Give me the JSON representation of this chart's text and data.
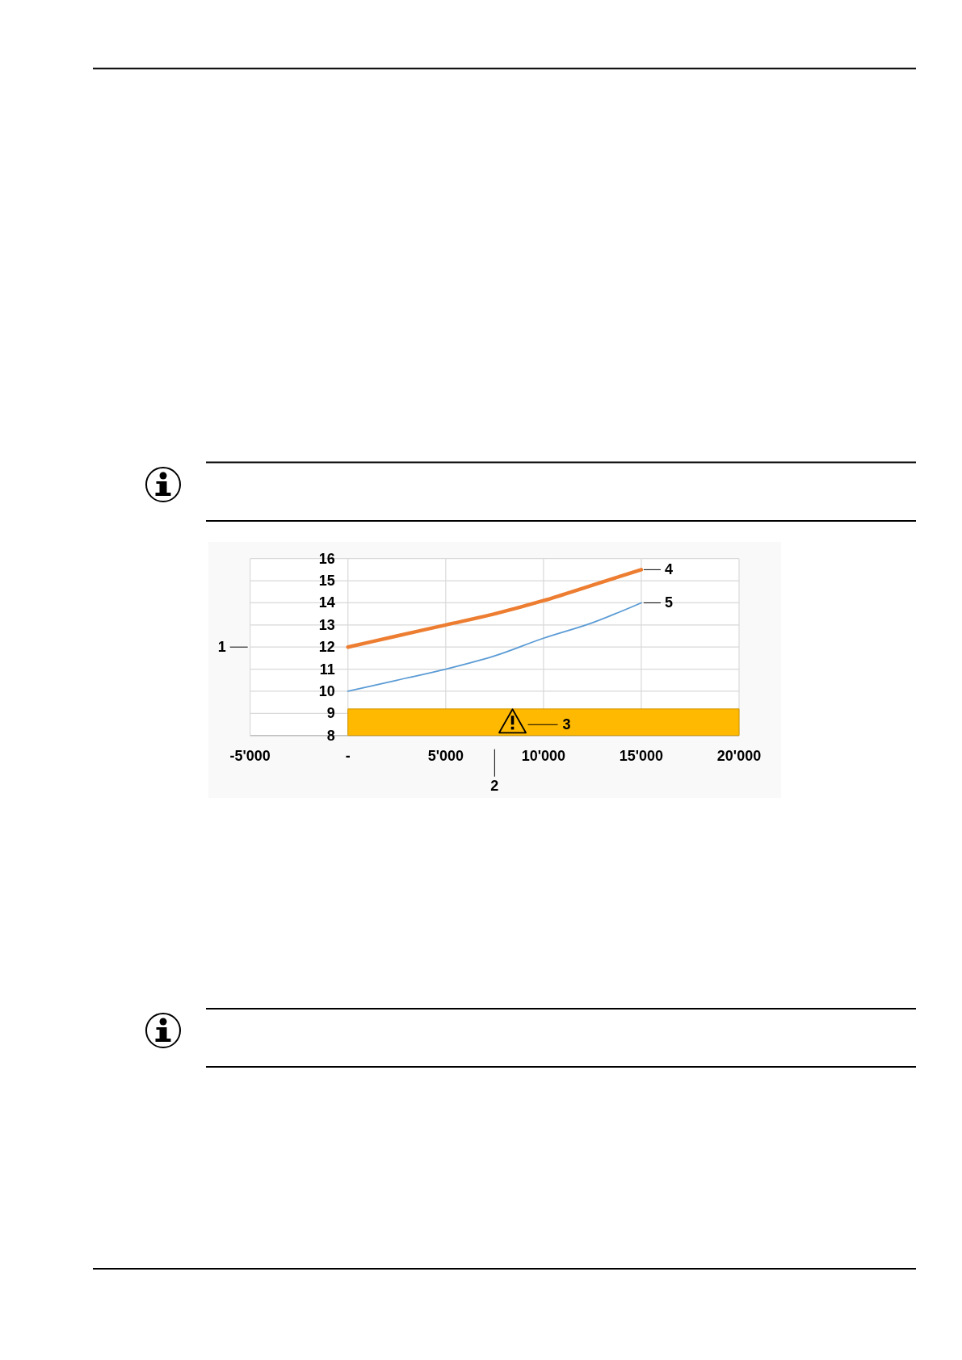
{
  "chart_data": {
    "type": "line",
    "xlabel": "2",
    "ylabel": "1",
    "xlim": [
      -5000,
      20000
    ],
    "xticks": [
      {
        "value": -5000,
        "label": "-5'000"
      },
      {
        "value": 0,
        "label": "-"
      },
      {
        "value": 5000,
        "label": "5'000"
      },
      {
        "value": 10000,
        "label": "10'000"
      },
      {
        "value": 15000,
        "label": "15'000"
      },
      {
        "value": 20000,
        "label": "20'000"
      }
    ],
    "ylim": [
      8,
      16
    ],
    "yticks": [
      8,
      9,
      10,
      11,
      12,
      13,
      14,
      15,
      16
    ],
    "grid": true,
    "series": [
      {
        "type": "area",
        "color": "#ffb901",
        "x": [
          0,
          20000
        ],
        "values": [
          9.2,
          9.2
        ]
      },
      {
        "name": "4",
        "color": "#ed7d31",
        "x": [
          0,
          2500,
          5000,
          7500,
          10000,
          12500,
          15000
        ],
        "values": [
          12.0,
          12.5,
          13.0,
          13.5,
          14.1,
          14.8,
          15.5
        ]
      },
      {
        "name": "5",
        "color": "#5b9bd5",
        "x": [
          0,
          2500,
          5000,
          7500,
          10000,
          12500,
          15000
        ],
        "values": [
          10.0,
          10.5,
          11.0,
          11.6,
          12.4,
          13.1,
          14.0
        ]
      }
    ],
    "annotations": [
      "3"
    ]
  }
}
